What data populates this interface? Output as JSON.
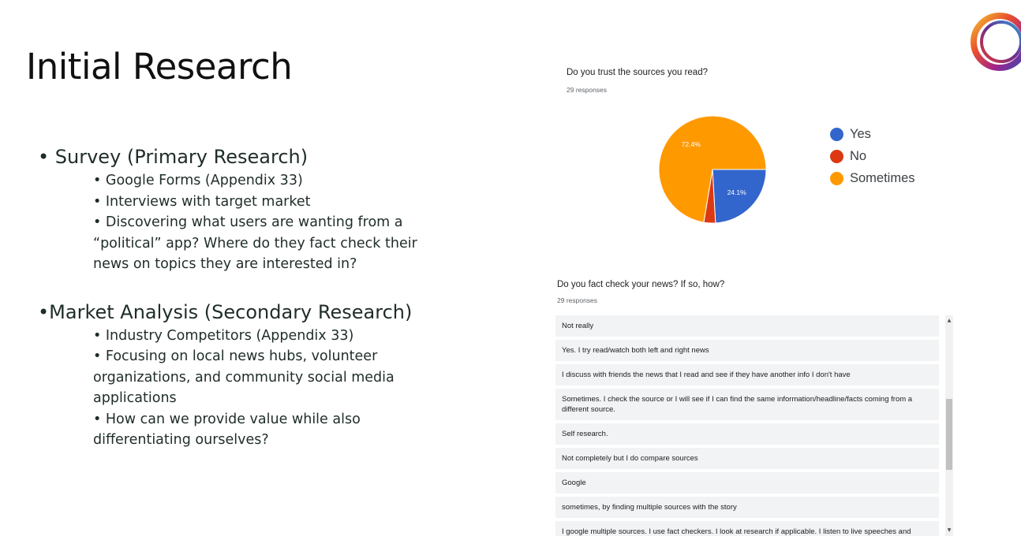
{
  "slide": {
    "title": "Initial Research",
    "bullets": [
      {
        "label": "• Survey (Primary Research)",
        "subs": [
          "• Google Forms (Appendix 33)",
          "• Interviews with target market",
          "• Discovering what users are wanting from a “political” app? Where do they fact check their news on topics they are interested in?"
        ]
      },
      {
        "label": "•Market Analysis (Secondary Research)",
        "subs": [
          "• Industry Competitors (Appendix 33)",
          "• Focusing on local news hubs, volunteer organizations, and community social media applications",
          "• How can we provide value while also differentiating ourselves?"
        ]
      }
    ]
  },
  "survey1": {
    "question": "Do you trust the sources you read?",
    "responses": "29 responses"
  },
  "chart_data": {
    "type": "pie",
    "title": "Do you trust the sources you read?",
    "categories": [
      "Yes",
      "No",
      "Sometimes"
    ],
    "values": [
      24.1,
      3.5,
      72.4
    ],
    "labels": [
      "24.1%",
      "",
      "72.4%"
    ],
    "colors": [
      "#3366cc",
      "#dc3912",
      "#ff9900"
    ],
    "legend": "right"
  },
  "survey2": {
    "question": "Do you fact check your news? If so, how?",
    "responses": "29 responses",
    "answers": [
      "Not really",
      "Yes. I try read/watch both left and right news",
      "I discuss with friends the news that I read and see if they have another info I don't have",
      "Sometimes. I check the source or I will see if I can find the same information/headline/facts coming from a different source.",
      "Self research.",
      "Not completely but I do compare sources",
      "Google",
      "sometimes, by finding multiple sources with the story",
      "I google multiple sources. I use fact checkers. I look at research if applicable. I listen to live speeches and"
    ]
  },
  "icons": {
    "logo": "ring-logo-icon",
    "scroll_up": "▲",
    "scroll_down": "▼"
  }
}
